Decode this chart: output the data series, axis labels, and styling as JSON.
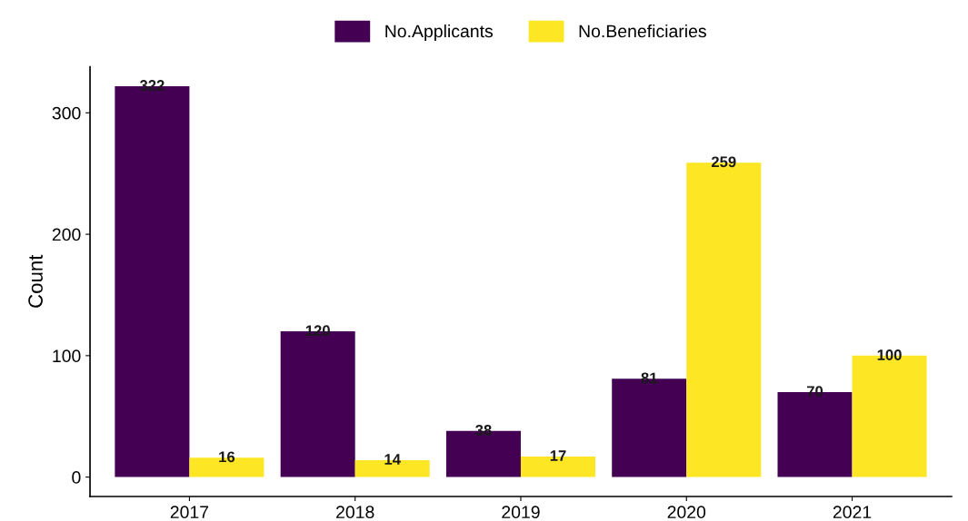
{
  "chart_data": {
    "type": "bar",
    "ylabel": "Count",
    "categories": [
      "2017",
      "2018",
      "2019",
      "2020",
      "2021"
    ],
    "series": [
      {
        "name": "No.Applicants",
        "color": "#440154",
        "values": [
          322,
          120,
          38,
          81,
          70
        ]
      },
      {
        "name": "No.Beneficiaries",
        "color": "#fde725",
        "values": [
          16,
          14,
          17,
          259,
          100
        ]
      }
    ],
    "ylim": [
      -16,
      338
    ],
    "yticks": [
      0,
      100,
      200,
      300
    ],
    "grid": false,
    "legend": "top",
    "data_labels": true
  }
}
